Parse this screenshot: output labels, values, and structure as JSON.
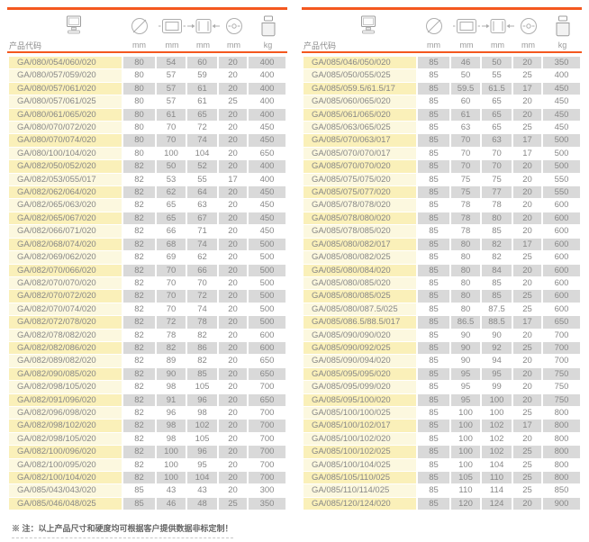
{
  "page": {
    "note": "※ 注：以上产品尺寸和硬度均可根据客户提供数据非标定制！"
  },
  "header": {
    "product_code_label": "产品代码",
    "icons": [
      "computer-icon",
      "outer-diameter-icon",
      "width-icon",
      "length-icon",
      "bore-diameter-icon",
      "weight-icon"
    ],
    "units": [
      "mm",
      "mm",
      "mm",
      "mm",
      "kg"
    ]
  },
  "colors": {
    "accent_orange": "#F4581F",
    "row_code_odd": "#FAF0B9",
    "row_code_even": "#FCF8DF",
    "row_value_odd": "#D9D9D9",
    "row_value_even": "#FFFFFF",
    "text_gray": "#878787"
  },
  "tables": [
    {
      "name": "left",
      "rows": [
        [
          "GA/080/054/060/020",
          "80",
          "54",
          "60",
          "20",
          "400"
        ],
        [
          "GA/080/057/059/020",
          "80",
          "57",
          "59",
          "20",
          "400"
        ],
        [
          "GA/080/057/061/020",
          "80",
          "57",
          "61",
          "20",
          "400"
        ],
        [
          "GA/080/057/061/025",
          "80",
          "57",
          "61",
          "25",
          "400"
        ],
        [
          "GA/080/061/065/020",
          "80",
          "61",
          "65",
          "20",
          "400"
        ],
        [
          "GA/080/070/072/020",
          "80",
          "70",
          "72",
          "20",
          "450"
        ],
        [
          "GA/080/070/074/020",
          "80",
          "70",
          "74",
          "20",
          "450"
        ],
        [
          "GA/080/100/104/020",
          "80",
          "100",
          "104",
          "20",
          "650"
        ],
        [
          "GA/082/050/052/020",
          "82",
          "50",
          "52",
          "20",
          "400"
        ],
        [
          "GA/082/053/055/017",
          "82",
          "53",
          "55",
          "17",
          "400"
        ],
        [
          "GA/082/062/064/020",
          "82",
          "62",
          "64",
          "20",
          "450"
        ],
        [
          "GA/082/065/063/020",
          "82",
          "65",
          "63",
          "20",
          "450"
        ],
        [
          "GA/082/065/067/020",
          "82",
          "65",
          "67",
          "20",
          "450"
        ],
        [
          "GA/082/066/071/020",
          "82",
          "66",
          "71",
          "20",
          "450"
        ],
        [
          "GA/082/068/074/020",
          "82",
          "68",
          "74",
          "20",
          "500"
        ],
        [
          "GA/082/069/062/020",
          "82",
          "69",
          "62",
          "20",
          "500"
        ],
        [
          "GA/082/070/066/020",
          "82",
          "70",
          "66",
          "20",
          "500"
        ],
        [
          "GA/082/070/070/020",
          "82",
          "70",
          "70",
          "20",
          "500"
        ],
        [
          "GA/082/070/072/020",
          "82",
          "70",
          "72",
          "20",
          "500"
        ],
        [
          "GA/082/070/074/020",
          "82",
          "70",
          "74",
          "20",
          "500"
        ],
        [
          "GA/082/072/078/020",
          "82",
          "72",
          "78",
          "20",
          "500"
        ],
        [
          "GA/082/078/082/020",
          "82",
          "78",
          "82",
          "20",
          "600"
        ],
        [
          "GA/082/082/086/020",
          "82",
          "82",
          "86",
          "20",
          "600"
        ],
        [
          "GA/082/089/082/020",
          "82",
          "89",
          "82",
          "20",
          "650"
        ],
        [
          "GA/082/090/085/020",
          "82",
          "90",
          "85",
          "20",
          "650"
        ],
        [
          "GA/082/098/105/020",
          "82",
          "98",
          "105",
          "20",
          "700"
        ],
        [
          "GA/082/091/096/020",
          "82",
          "91",
          "96",
          "20",
          "650"
        ],
        [
          "GA/082/096/098/020",
          "82",
          "96",
          "98",
          "20",
          "700"
        ],
        [
          "GA/082/098/102/020",
          "82",
          "98",
          "102",
          "20",
          "700"
        ],
        [
          "GA/082/098/105/020",
          "82",
          "98",
          "105",
          "20",
          "700"
        ],
        [
          "GA/082/100/096/020",
          "82",
          "100",
          "96",
          "20",
          "700"
        ],
        [
          "GA/082/100/095/020",
          "82",
          "100",
          "95",
          "20",
          "700"
        ],
        [
          "GA/082/100/104/020",
          "82",
          "100",
          "104",
          "20",
          "700"
        ],
        [
          "GA/085/043/043/020",
          "85",
          "43",
          "43",
          "20",
          "300"
        ],
        [
          "GA/085/046/048/025",
          "85",
          "46",
          "48",
          "25",
          "350"
        ]
      ]
    },
    {
      "name": "right",
      "rows": [
        [
          "GA/085/046/050/020",
          "85",
          "46",
          "50",
          "20",
          "350"
        ],
        [
          "GA/085/050/055/025",
          "85",
          "50",
          "55",
          "25",
          "400"
        ],
        [
          "GA/085/059.5/61.5/17",
          "85",
          "59.5",
          "61.5",
          "17",
          "450"
        ],
        [
          "GA/085/060/065/020",
          "85",
          "60",
          "65",
          "20",
          "450"
        ],
        [
          "GA/085/061/065/020",
          "85",
          "61",
          "65",
          "20",
          "450"
        ],
        [
          "GA/085/063/065/025",
          "85",
          "63",
          "65",
          "25",
          "450"
        ],
        [
          "GA/085/070/063/017",
          "85",
          "70",
          "63",
          "17",
          "500"
        ],
        [
          "GA/085/070/070/017",
          "85",
          "70",
          "70",
          "17",
          "500"
        ],
        [
          "GA/085/070/070/020",
          "85",
          "70",
          "70",
          "20",
          "500"
        ],
        [
          "GA/085/075/075/020",
          "85",
          "75",
          "75",
          "20",
          "550"
        ],
        [
          "GA/085/075/077/020",
          "85",
          "75",
          "77",
          "20",
          "550"
        ],
        [
          "GA/085/078/078/020",
          "85",
          "78",
          "78",
          "20",
          "600"
        ],
        [
          "GA/085/078/080/020",
          "85",
          "78",
          "80",
          "20",
          "600"
        ],
        [
          "GA/085/078/085/020",
          "85",
          "78",
          "85",
          "20",
          "600"
        ],
        [
          "GA/085/080/082/017",
          "85",
          "80",
          "82",
          "17",
          "600"
        ],
        [
          "GA/085/080/082/025",
          "85",
          "80",
          "82",
          "25",
          "600"
        ],
        [
          "GA/085/080/084/020",
          "85",
          "80",
          "84",
          "20",
          "600"
        ],
        [
          "GA/085/080/085/020",
          "85",
          "80",
          "85",
          "20",
          "600"
        ],
        [
          "GA/085/080/085/025",
          "85",
          "80",
          "85",
          "25",
          "600"
        ],
        [
          "GA/085/080/087.5/025",
          "85",
          "80",
          "87.5",
          "25",
          "600"
        ],
        [
          "GA/085/086.5/88.5/017",
          "85",
          "86.5",
          "88.5",
          "17",
          "650"
        ],
        [
          "GA/085/090/090/020",
          "85",
          "90",
          "90",
          "20",
          "700"
        ],
        [
          "GA/085/090/092/025",
          "85",
          "90",
          "92",
          "25",
          "700"
        ],
        [
          "GA/085/090/094/020",
          "85",
          "90",
          "94",
          "20",
          "700"
        ],
        [
          "GA/085/095/095/020",
          "85",
          "95",
          "95",
          "20",
          "750"
        ],
        [
          "GA/085/095/099/020",
          "85",
          "95",
          "99",
          "20",
          "750"
        ],
        [
          "GA/085/095/100/020",
          "85",
          "95",
          "100",
          "20",
          "750"
        ],
        [
          "GA/085/100/100/025",
          "85",
          "100",
          "100",
          "25",
          "800"
        ],
        [
          "GA/085/100/102/017",
          "85",
          "100",
          "102",
          "17",
          "800"
        ],
        [
          "GA/085/100/102/020",
          "85",
          "100",
          "102",
          "20",
          "800"
        ],
        [
          "GA/085/100/102/025",
          "85",
          "100",
          "102",
          "25",
          "800"
        ],
        [
          "GA/085/100/104/025",
          "85",
          "100",
          "104",
          "25",
          "800"
        ],
        [
          "GA/085/105/110/025",
          "85",
          "105",
          "110",
          "25",
          "800"
        ],
        [
          "GA/085/110/114/025",
          "85",
          "110",
          "114",
          "25",
          "850"
        ],
        [
          "GA/085/120/124/020",
          "85",
          "120",
          "124",
          "20",
          "900"
        ]
      ]
    }
  ]
}
